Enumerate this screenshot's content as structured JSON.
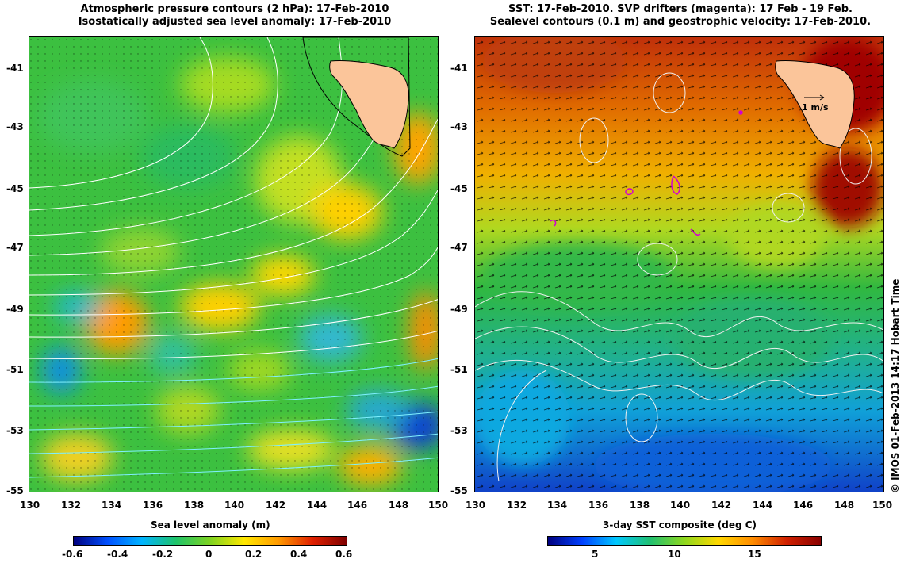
{
  "left": {
    "title_line1": "Atmospheric pressure contours (2 hPa): 17-Feb-2010",
    "title_line2": "Isostatically adjusted sea level anomaly: 17-Feb-2010",
    "colorbar_label": "Sea level anomaly (m)",
    "colorbar_ticks": [
      "-0.6",
      "-0.4",
      "-0.2",
      "0",
      "0.2",
      "0.4",
      "0.6"
    ]
  },
  "right": {
    "title_line1": "SST: 17-Feb-2010. SVP drifters (magenta): 17 Feb - 19 Feb.",
    "title_line2": "Sealevel contours (0.1 m) and geostrophic velocity: 17-Feb-2010.",
    "colorbar_label": "3-day SST composite (deg C)",
    "colorbar_ticks": [
      "5",
      "10",
      "15"
    ],
    "vector_key": "1 m/s"
  },
  "axes": {
    "lat_labels": [
      "-41",
      "-43",
      "-45",
      "-47",
      "-49",
      "-51",
      "-53",
      "-55"
    ],
    "lon_labels": [
      "130",
      "132",
      "134",
      "136",
      "138",
      "140",
      "142",
      "144",
      "146",
      "148",
      "150"
    ]
  },
  "credit": "© IMOS 01-Feb-2013 14:17 Hobart Time",
  "colors": {
    "land": "#fbc59a",
    "pressure_contour": "#ffffff",
    "drifter": "#d200d2",
    "sla_ramp": [
      "#00007f",
      "#0050ff",
      "#00b4ff",
      "#1fc46a",
      "#7ed321",
      "#ffe800",
      "#ff9a00",
      "#e02000",
      "#7f0000"
    ],
    "sst_ramp": [
      "#00007f",
      "#0040ff",
      "#00c8ff",
      "#20c070",
      "#8ed81e",
      "#ffd800",
      "#ff8c00",
      "#d02000",
      "#8a0000"
    ]
  }
}
